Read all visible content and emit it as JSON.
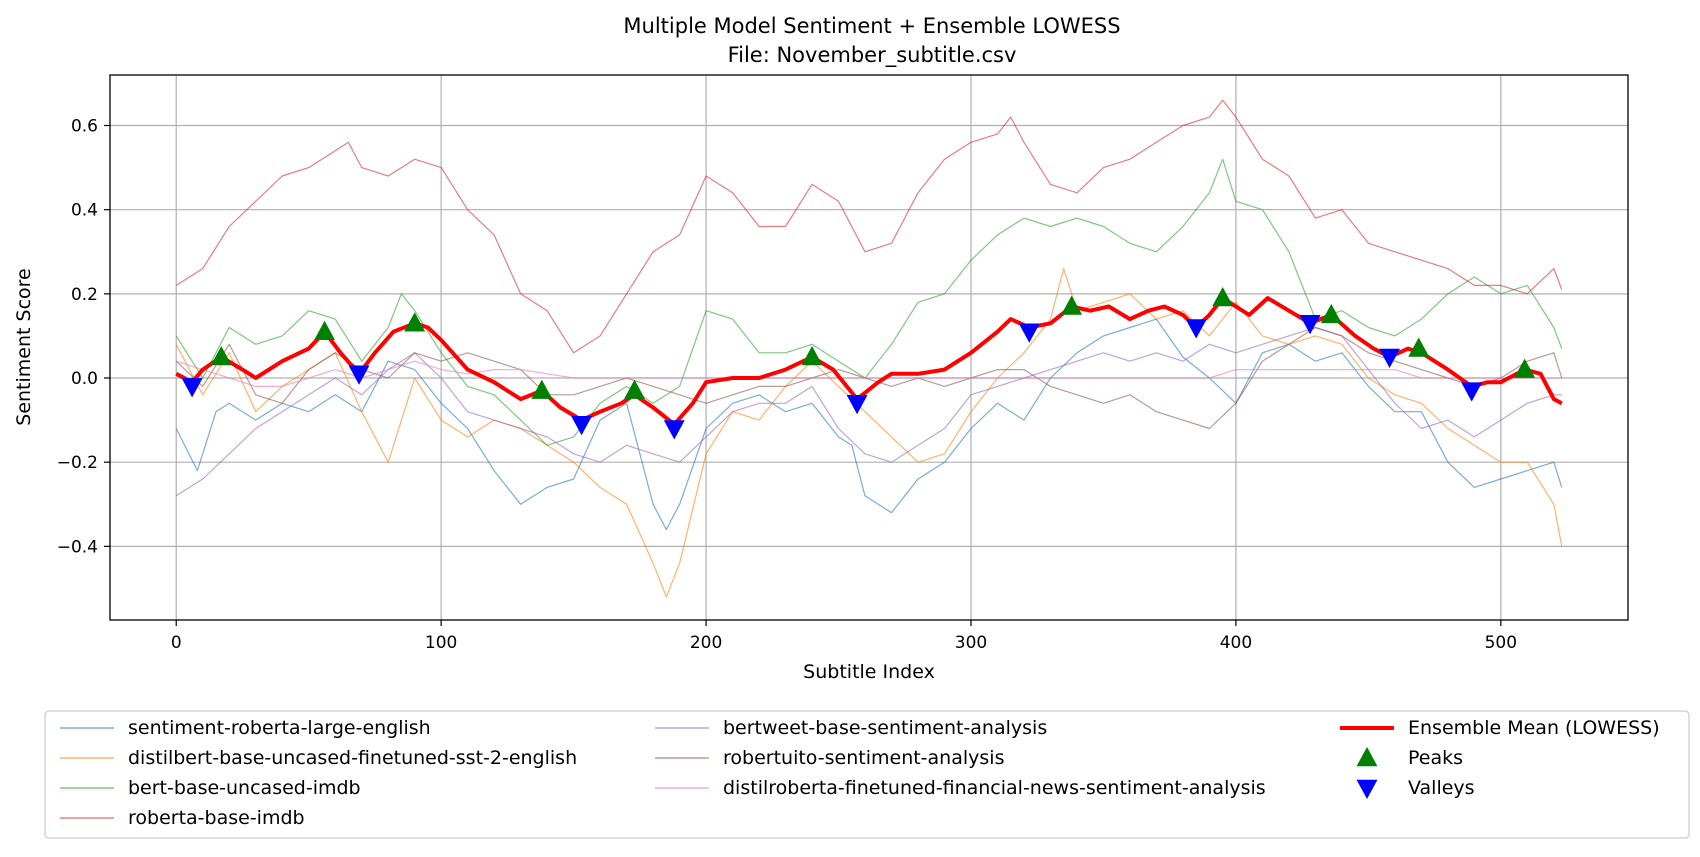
{
  "chart_data": {
    "type": "line",
    "title": "Multiple Model Sentiment + Ensemble LOWESS",
    "subtitle": "File: November_subtitle.csv",
    "xlabel": "Subtitle Index",
    "ylabel": "Sentiment Score",
    "xlim": [
      -25,
      548
    ],
    "ylim": [
      -0.575,
      0.72
    ],
    "xticks": [
      0,
      100,
      200,
      300,
      400,
      500
    ],
    "xtick_labels": [
      "0",
      "100",
      "200",
      "300",
      "400",
      "500"
    ],
    "yticks": [
      -0.4,
      -0.2,
      0.0,
      0.2,
      0.4,
      0.6
    ],
    "ytick_labels": [
      "−0.4",
      "−0.2",
      "0.0",
      "0.2",
      "0.4",
      "0.6"
    ],
    "grid": true,
    "legend_position": "below plot",
    "series": [
      {
        "name": "sentiment-roberta-large-english",
        "color": "#1f77b4",
        "x": [
          0,
          8,
          15,
          20,
          30,
          40,
          50,
          60,
          70,
          80,
          90,
          100,
          110,
          120,
          130,
          140,
          150,
          160,
          170,
          180,
          185,
          190,
          200,
          210,
          220,
          230,
          240,
          250,
          255,
          260,
          270,
          280,
          290,
          300,
          310,
          320,
          330,
          340,
          350,
          360,
          370,
          380,
          390,
          400,
          410,
          420,
          430,
          440,
          450,
          460,
          470,
          480,
          490,
          500,
          510,
          520,
          523
        ],
        "y": [
          -0.12,
          -0.22,
          -0.08,
          -0.06,
          -0.1,
          -0.06,
          -0.08,
          -0.04,
          -0.08,
          0.04,
          0.02,
          -0.06,
          -0.12,
          -0.22,
          -0.3,
          -0.26,
          -0.24,
          -0.1,
          -0.06,
          -0.3,
          -0.36,
          -0.3,
          -0.12,
          -0.06,
          -0.04,
          -0.08,
          -0.06,
          -0.14,
          -0.16,
          -0.28,
          -0.32,
          -0.24,
          -0.2,
          -0.12,
          -0.06,
          -0.1,
          0.0,
          0.06,
          0.1,
          0.12,
          0.14,
          0.05,
          0.0,
          -0.06,
          0.06,
          0.08,
          0.04,
          0.06,
          -0.02,
          -0.08,
          -0.08,
          -0.2,
          -0.26,
          -0.24,
          -0.22,
          -0.2,
          -0.26
        ]
      },
      {
        "name": "distilbert-base-uncased-finetuned-sst-2-english",
        "color": "#ff7f0e",
        "x": [
          0,
          10,
          20,
          30,
          40,
          50,
          60,
          70,
          80,
          90,
          100,
          110,
          120,
          130,
          140,
          150,
          160,
          170,
          180,
          185,
          190,
          200,
          210,
          220,
          230,
          240,
          250,
          260,
          270,
          280,
          290,
          300,
          310,
          320,
          330,
          335,
          340,
          350,
          360,
          370,
          380,
          390,
          400,
          410,
          420,
          430,
          440,
          450,
          460,
          470,
          480,
          490,
          500,
          510,
          520,
          523
        ],
        "y": [
          0.08,
          -0.04,
          0.06,
          -0.08,
          -0.02,
          0.02,
          0.06,
          -0.08,
          -0.2,
          0.0,
          -0.1,
          -0.14,
          -0.1,
          -0.12,
          -0.16,
          -0.2,
          -0.26,
          -0.3,
          -0.44,
          -0.52,
          -0.44,
          -0.18,
          -0.08,
          -0.1,
          -0.02,
          0.04,
          -0.02,
          -0.08,
          -0.14,
          -0.2,
          -0.18,
          -0.08,
          0.0,
          0.06,
          0.14,
          0.26,
          0.16,
          0.18,
          0.2,
          0.14,
          0.16,
          0.1,
          0.18,
          0.1,
          0.08,
          0.1,
          0.08,
          0.0,
          -0.04,
          -0.06,
          -0.12,
          -0.16,
          -0.2,
          -0.2,
          -0.3,
          -0.4
        ]
      },
      {
        "name": "bert-base-uncased-imdb",
        "color": "#2ca02c",
        "x": [
          0,
          10,
          20,
          30,
          40,
          50,
          60,
          70,
          80,
          85,
          90,
          100,
          110,
          120,
          130,
          140,
          150,
          160,
          170,
          180,
          190,
          200,
          210,
          220,
          230,
          240,
          250,
          260,
          270,
          280,
          290,
          300,
          310,
          320,
          330,
          340,
          350,
          360,
          370,
          380,
          390,
          395,
          400,
          410,
          420,
          430,
          440,
          450,
          460,
          470,
          480,
          490,
          500,
          510,
          520,
          523
        ],
        "y": [
          0.1,
          0.0,
          0.12,
          0.08,
          0.1,
          0.16,
          0.14,
          0.04,
          0.12,
          0.2,
          0.16,
          0.06,
          -0.02,
          -0.04,
          -0.1,
          -0.16,
          -0.14,
          -0.06,
          -0.02,
          -0.06,
          -0.02,
          0.16,
          0.14,
          0.06,
          0.06,
          0.08,
          0.04,
          0.0,
          0.08,
          0.18,
          0.2,
          0.28,
          0.34,
          0.38,
          0.36,
          0.38,
          0.36,
          0.32,
          0.3,
          0.36,
          0.44,
          0.52,
          0.42,
          0.4,
          0.3,
          0.14,
          0.16,
          0.12,
          0.1,
          0.14,
          0.2,
          0.24,
          0.2,
          0.22,
          0.12,
          0.07
        ]
      },
      {
        "name": "roberta-base-imdb",
        "color": "#d62728",
        "x": [
          0,
          10,
          20,
          30,
          40,
          50,
          60,
          65,
          70,
          80,
          90,
          100,
          110,
          120,
          130,
          140,
          150,
          160,
          170,
          180,
          190,
          200,
          210,
          220,
          230,
          240,
          250,
          260,
          270,
          280,
          290,
          300,
          310,
          315,
          320,
          330,
          340,
          350,
          360,
          370,
          380,
          390,
          395,
          400,
          410,
          420,
          430,
          440,
          450,
          460,
          470,
          480,
          490,
          500,
          510,
          520,
          523
        ],
        "y": [
          0.22,
          0.26,
          0.36,
          0.42,
          0.48,
          0.5,
          0.54,
          0.56,
          0.5,
          0.48,
          0.52,
          0.5,
          0.4,
          0.34,
          0.2,
          0.16,
          0.06,
          0.1,
          0.2,
          0.3,
          0.34,
          0.48,
          0.44,
          0.36,
          0.36,
          0.46,
          0.42,
          0.3,
          0.32,
          0.44,
          0.52,
          0.56,
          0.58,
          0.62,
          0.56,
          0.46,
          0.44,
          0.5,
          0.52,
          0.56,
          0.6,
          0.62,
          0.66,
          0.62,
          0.52,
          0.48,
          0.38,
          0.4,
          0.32,
          0.3,
          0.28,
          0.26,
          0.22,
          0.22,
          0.2,
          0.26,
          0.21
        ]
      },
      {
        "name": "bertweet-base-sentiment-analysis",
        "color": "#9467bd",
        "x": [
          0,
          10,
          20,
          30,
          40,
          50,
          60,
          70,
          80,
          90,
          100,
          110,
          120,
          130,
          140,
          150,
          160,
          170,
          180,
          190,
          200,
          210,
          220,
          230,
          240,
          250,
          260,
          270,
          280,
          290,
          300,
          310,
          320,
          330,
          340,
          350,
          360,
          370,
          380,
          390,
          400,
          410,
          420,
          430,
          440,
          450,
          460,
          470,
          480,
          490,
          500,
          510,
          520,
          523
        ],
        "y": [
          -0.28,
          -0.24,
          -0.18,
          -0.12,
          -0.08,
          -0.04,
          0.0,
          -0.04,
          0.02,
          0.06,
          0.0,
          -0.08,
          -0.1,
          -0.12,
          -0.14,
          -0.18,
          -0.2,
          -0.16,
          -0.18,
          -0.2,
          -0.14,
          -0.08,
          -0.06,
          -0.06,
          -0.02,
          -0.12,
          -0.18,
          -0.2,
          -0.16,
          -0.12,
          -0.04,
          -0.02,
          0.0,
          0.02,
          0.04,
          0.06,
          0.04,
          0.06,
          0.04,
          0.08,
          0.06,
          0.08,
          0.1,
          0.12,
          0.1,
          0.02,
          -0.06,
          -0.12,
          -0.1,
          -0.14,
          -0.1,
          -0.06,
          -0.04,
          -0.04
        ]
      },
      {
        "name": "robertuito-sentiment-analysis",
        "color": "#8c564b",
        "x": [
          0,
          10,
          20,
          30,
          40,
          50,
          60,
          70,
          80,
          90,
          100,
          110,
          120,
          130,
          140,
          150,
          160,
          170,
          180,
          190,
          200,
          210,
          220,
          230,
          240,
          250,
          260,
          270,
          280,
          290,
          300,
          310,
          320,
          330,
          340,
          350,
          360,
          370,
          380,
          390,
          400,
          410,
          420,
          430,
          440,
          450,
          460,
          470,
          480,
          490,
          500,
          510,
          520,
          523
        ],
        "y": [
          0.04,
          -0.02,
          0.08,
          -0.04,
          -0.06,
          0.02,
          0.06,
          0.02,
          0.0,
          0.06,
          0.04,
          0.06,
          0.04,
          0.02,
          -0.04,
          -0.04,
          -0.02,
          0.0,
          -0.02,
          -0.04,
          -0.06,
          -0.04,
          -0.02,
          -0.02,
          0.0,
          0.02,
          0.0,
          -0.02,
          0.0,
          -0.02,
          0.0,
          0.02,
          0.02,
          -0.02,
          -0.04,
          -0.06,
          -0.04,
          -0.08,
          -0.1,
          -0.12,
          -0.06,
          0.04,
          0.08,
          0.12,
          0.1,
          0.06,
          0.04,
          0.02,
          0.0,
          -0.02,
          0.0,
          0.04,
          0.06,
          0.0
        ]
      },
      {
        "name": "distilroberta-finetuned-financial-news-sentiment-analysis",
        "color": "#e377c2",
        "x": [
          0,
          10,
          20,
          30,
          40,
          50,
          60,
          70,
          80,
          90,
          100,
          110,
          120,
          130,
          140,
          150,
          160,
          170,
          180,
          190,
          200,
          210,
          220,
          230,
          240,
          250,
          260,
          270,
          280,
          290,
          300,
          310,
          320,
          330,
          340,
          350,
          360,
          370,
          380,
          390,
          400,
          410,
          420,
          430,
          440,
          450,
          460,
          470,
          480,
          490,
          500,
          510,
          520,
          523
        ],
        "y": [
          0.04,
          0.02,
          0.0,
          -0.02,
          -0.02,
          0.0,
          0.02,
          0.0,
          0.02,
          0.04,
          0.02,
          0.01,
          0.02,
          0.02,
          0.01,
          0.0,
          0.0,
          0.0,
          0.0,
          0.0,
          0.0,
          0.0,
          0.0,
          0.0,
          0.0,
          0.0,
          0.0,
          0.0,
          0.0,
          0.0,
          0.0,
          0.0,
          0.0,
          0.0,
          0.0,
          0.0,
          0.0,
          0.0,
          0.0,
          0.0,
          0.02,
          0.02,
          0.02,
          0.02,
          0.02,
          0.02,
          0.02,
          0.0,
          0.0,
          0.0,
          0.0,
          0.0,
          0.0,
          0.0
        ]
      },
      {
        "name": "Ensemble Mean (LOWESS)",
        "color": "#ff0000",
        "x": [
          0,
          6,
          10,
          17,
          25,
          30,
          40,
          50,
          56,
          62,
          69,
          75,
          82,
          90,
          95,
          100,
          110,
          120,
          130,
          138,
          145,
          153,
          160,
          168,
          173,
          180,
          188,
          195,
          200,
          210,
          220,
          230,
          240,
          248,
          257,
          265,
          270,
          280,
          290,
          300,
          310,
          315,
          322,
          330,
          338,
          345,
          352,
          360,
          367,
          373,
          380,
          385,
          390,
          395,
          400,
          405,
          412,
          420,
          428,
          436,
          445,
          452,
          458,
          465,
          470,
          480,
          489,
          495,
          500,
          509,
          515,
          520,
          523
        ],
        "y": [
          0.01,
          -0.01,
          0.02,
          0.05,
          0.02,
          0.0,
          0.04,
          0.07,
          0.11,
          0.06,
          0.01,
          0.06,
          0.11,
          0.13,
          0.12,
          0.09,
          0.02,
          -0.01,
          -0.05,
          -0.03,
          -0.07,
          -0.1,
          -0.08,
          -0.06,
          -0.04,
          -0.07,
          -0.11,
          -0.06,
          -0.01,
          0.0,
          0.0,
          0.02,
          0.05,
          0.02,
          -0.05,
          -0.01,
          0.01,
          0.01,
          0.02,
          0.06,
          0.11,
          0.14,
          0.12,
          0.13,
          0.17,
          0.16,
          0.17,
          0.14,
          0.16,
          0.17,
          0.15,
          0.12,
          0.15,
          0.19,
          0.17,
          0.15,
          0.19,
          0.16,
          0.13,
          0.15,
          0.1,
          0.07,
          0.05,
          0.07,
          0.06,
          0.02,
          -0.02,
          -0.01,
          -0.01,
          0.02,
          0.01,
          -0.05,
          -0.06
        ]
      }
    ],
    "peaks": {
      "name": "Peaks",
      "color": "#008000",
      "x": [
        17,
        56,
        90,
        138,
        173,
        240,
        338,
        395,
        436,
        469,
        509
      ],
      "y": [
        0.05,
        0.11,
        0.13,
        -0.03,
        -0.03,
        0.05,
        0.17,
        0.19,
        0.15,
        0.07,
        0.02
      ]
    },
    "valleys": {
      "name": "Valleys",
      "color": "#0000ff",
      "x": [
        6,
        69,
        153,
        188,
        257,
        322,
        385,
        428,
        458,
        489
      ],
      "y": [
        -0.02,
        0.01,
        -0.11,
        -0.12,
        -0.06,
        0.11,
        0.12,
        0.13,
        0.05,
        -0.03
      ]
    }
  }
}
